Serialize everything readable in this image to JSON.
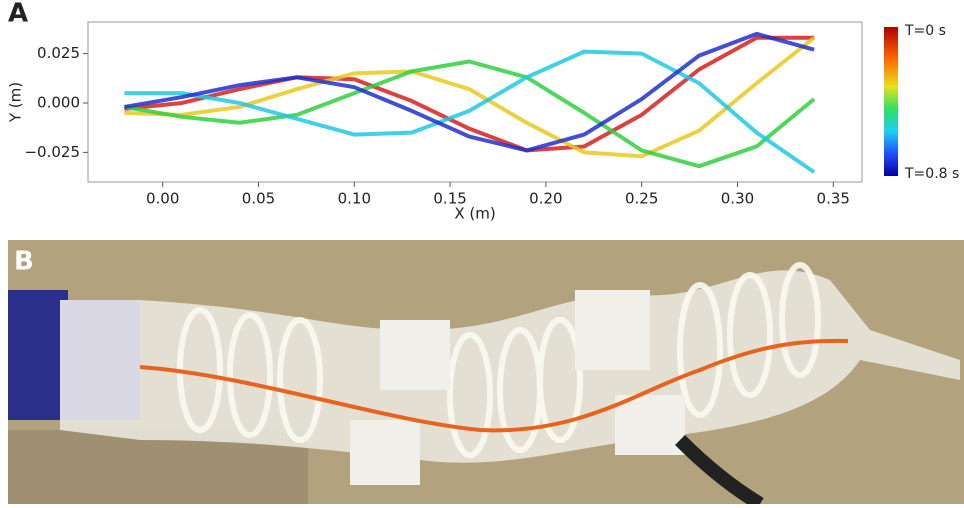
{
  "chart_data": {
    "type": "line",
    "panel_label": "A",
    "xlabel": "X (m)",
    "ylabel": "Y (m)",
    "colorbar_labels": [
      "T=0 s",
      "T=0.8 s"
    ],
    "xlim": [
      -0.039,
      0.365
    ],
    "ylim": [
      -0.04,
      0.041
    ],
    "xticks": [
      {
        "value": 0,
        "label": "0.00"
      },
      {
        "value": 0.05,
        "label": "0.05"
      },
      {
        "value": 0.1,
        "label": "0.10"
      },
      {
        "value": 0.15,
        "label": "0.15"
      },
      {
        "value": 0.2,
        "label": "0.20"
      },
      {
        "value": 0.25,
        "label": "0.25"
      },
      {
        "value": 0.3,
        "label": "0.30"
      },
      {
        "value": 0.35,
        "label": "0.35"
      }
    ],
    "yticks": [
      {
        "value": -0.025,
        "label": "−0.025"
      },
      {
        "value": 0,
        "label": "0.000"
      },
      {
        "value": 0.025,
        "label": "0.025"
      }
    ],
    "x": [
      -0.02,
      0.01,
      0.04,
      0.07,
      0.1,
      0.13,
      0.16,
      0.19,
      0.22,
      0.25,
      0.28,
      0.31,
      0.34
    ],
    "series": [
      {
        "color": "#d62020",
        "values": [
          -0.003,
          0.0,
          0.007,
          0.013,
          0.012,
          0.001,
          -0.013,
          -0.024,
          -0.022,
          -0.006,
          0.017,
          0.033,
          0.033
        ]
      },
      {
        "color": "#e8c820",
        "values": [
          -0.005,
          -0.006,
          -0.002,
          0.007,
          0.015,
          0.016,
          0.007,
          -0.01,
          -0.025,
          -0.027,
          -0.014,
          0.01,
          0.033
        ]
      },
      {
        "color": "#30d040",
        "values": [
          -0.002,
          -0.007,
          -0.01,
          -0.006,
          0.005,
          0.016,
          0.021,
          0.013,
          -0.005,
          -0.024,
          -0.032,
          -0.022,
          0.002
        ]
      },
      {
        "color": "#20c8e0",
        "values": [
          0.005,
          0.005,
          0.0,
          -0.008,
          -0.016,
          -0.015,
          -0.004,
          0.013,
          0.026,
          0.025,
          0.01,
          -0.015,
          -0.035
        ]
      },
      {
        "color": "#2030d0",
        "values": [
          -0.002,
          0.003,
          0.009,
          0.013,
          0.008,
          -0.004,
          -0.017,
          -0.024,
          -0.016,
          0.002,
          0.024,
          0.035,
          0.027
        ]
      }
    ]
  },
  "photo": {
    "panel_label": "B"
  }
}
